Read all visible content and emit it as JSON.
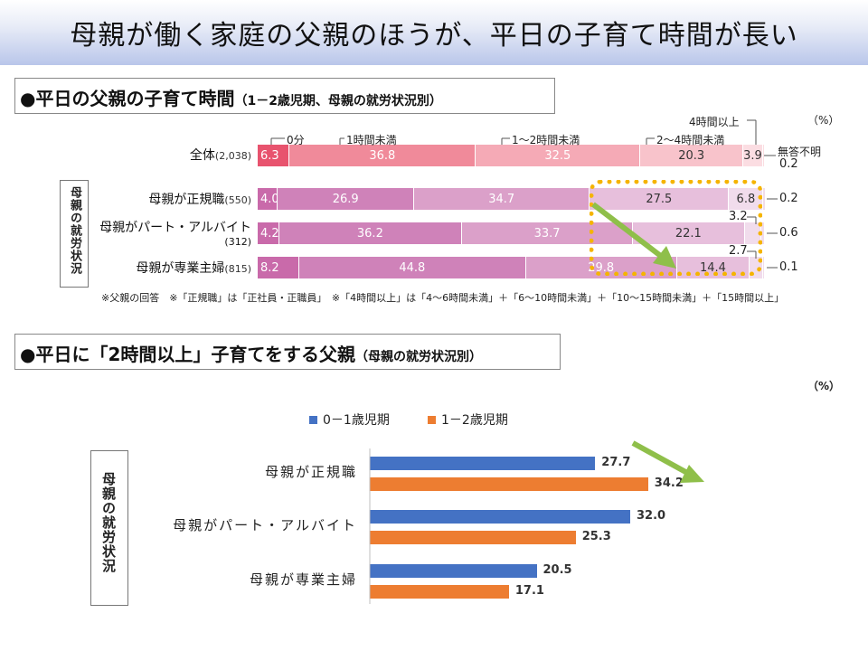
{
  "page": {
    "title": "母親が働く家庭の父親のほうが、平日の子育て時間が長い"
  },
  "section1": {
    "heading": "●平日の父親の子育て時間",
    "subheading": "（1－2歳児期、母親の就労状況別）",
    "group_label": "母親の就労状況",
    "unit": "（%）",
    "footnote": "※父親の回答　※「正規職」は「正社員・正職員」　※「4時間以上」は「4～6時間未満」＋「6～10時間未満」＋「10～15時間未満」＋「15時間以上」",
    "colors": [
      "#e8536e",
      "#f08a9a",
      "#f5aab6",
      "#f8c3cb",
      "#fbdde2"
    ],
    "colors_mother": [
      "#c96aaa",
      "#cf82b9",
      "#dba0c9",
      "#e7bfdc",
      "#f1dcec"
    ]
  },
  "section2": {
    "heading": "●平日に「2時間以上」子育てをする父親",
    "subheading": "（母親の就労状況別）",
    "group_label": "母親の就労状況",
    "unit": "（%）"
  },
  "chart_data": [
    {
      "type": "bar",
      "stacked": true,
      "orientation": "horizontal",
      "categories": [
        "0分",
        "1時間未満",
        "1～2時間未満",
        "2～4時間未満",
        "4時間以上",
        "無答不明"
      ],
      "rows": [
        {
          "label": "全体",
          "n": "(2,038)",
          "values": [
            6.3,
            36.8,
            32.5,
            20.3,
            3.9,
            0.2
          ]
        },
        {
          "label": "母親が正規職",
          "n": "(550)",
          "values": [
            4.0,
            26.9,
            34.7,
            27.5,
            6.8,
            0.2
          ]
        },
        {
          "label": "母親がパート・アルバイト",
          "n": "(312)",
          "values": [
            4.2,
            36.2,
            33.7,
            22.1,
            3.2,
            0.6
          ]
        },
        {
          "label": "母親が専業主婦",
          "n": "(815)",
          "values": [
            8.2,
            44.8,
            29.8,
            14.4,
            2.7,
            0.1
          ]
        }
      ],
      "unit": "%",
      "xlim": [
        0,
        100
      ]
    },
    {
      "type": "bar",
      "orientation": "horizontal",
      "categories": [
        "母親が正規職",
        "母親がパート・アルバイト",
        "母親が専業主婦"
      ],
      "series": [
        {
          "name": "0－1歳児期",
          "color": "#4472c4",
          "values": [
            27.7,
            32.0,
            20.5
          ]
        },
        {
          "name": "1－2歳児期",
          "color": "#ed7d31",
          "values": [
            34.2,
            25.3,
            17.1
          ]
        }
      ],
      "unit": "%",
      "legend": "top"
    }
  ]
}
